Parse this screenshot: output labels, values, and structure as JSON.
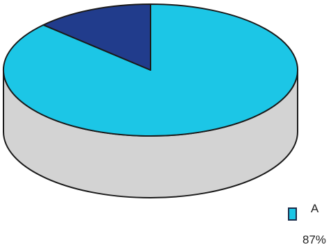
{
  "chart_data": {
    "type": "pie",
    "style": "3d",
    "slices": [
      {
        "label": "A",
        "value": 87,
        "value_label": "87%",
        "color": "#1cc6e6"
      },
      {
        "label": "",
        "value": 13,
        "value_label": "",
        "color": "#213c8c"
      }
    ],
    "side_color": "#d3d3d3",
    "legend": {
      "placement": "bottom-right",
      "entries": [
        {
          "label": "A",
          "value_label": "87%",
          "color": "#1cc6e6"
        }
      ]
    }
  }
}
